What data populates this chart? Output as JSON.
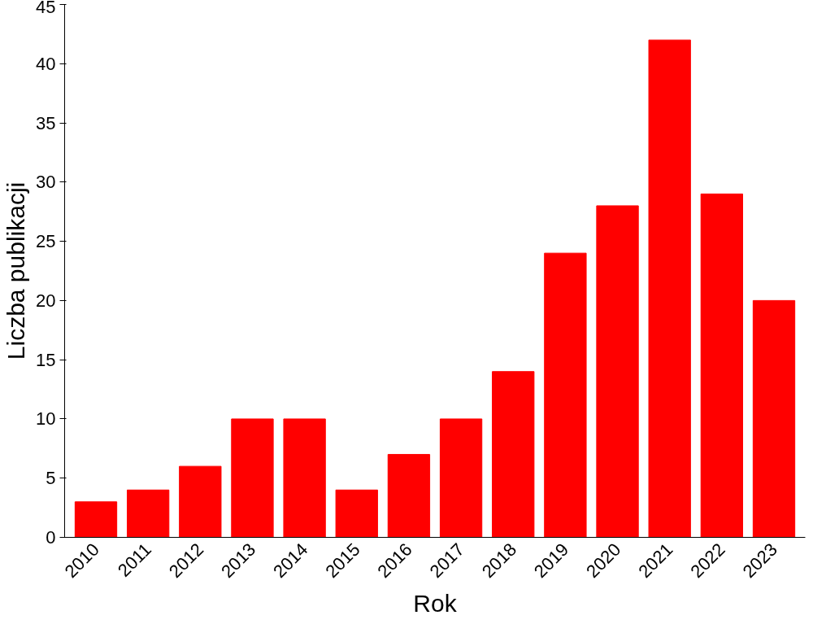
{
  "chart_data": {
    "type": "bar",
    "xlabel": "Rok",
    "ylabel": "Liczba publikacji",
    "categories": [
      "2010",
      "2011",
      "2012",
      "2013",
      "2014",
      "2015",
      "2016",
      "2017",
      "2018",
      "2019",
      "2020",
      "2021",
      "2022",
      "2023"
    ],
    "values": [
      3,
      4,
      6,
      10,
      10,
      4,
      7,
      10,
      14,
      24,
      28,
      42,
      29,
      20
    ],
    "color": "#ff0000",
    "ylim": [
      0,
      45
    ],
    "yticks": [
      0,
      5,
      10,
      15,
      20,
      25,
      30,
      35,
      40,
      45
    ],
    "grid": false
  }
}
